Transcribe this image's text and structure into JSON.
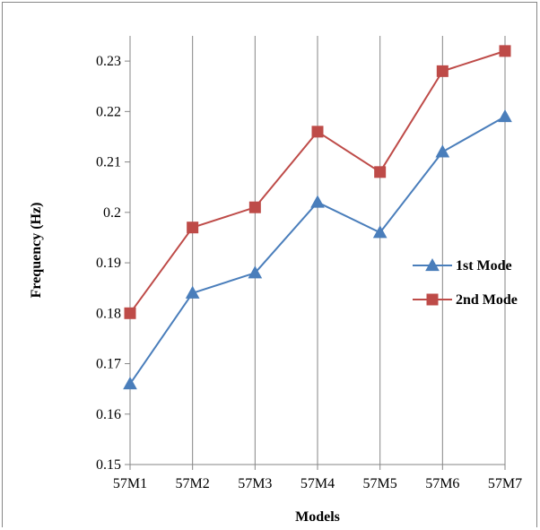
{
  "chart_data": {
    "type": "line",
    "title": "",
    "xlabel": "Models",
    "ylabel": "Frequency (Hz)",
    "categories": [
      "57M1",
      "57M2",
      "57M3",
      "57M4",
      "57M5",
      "57M6",
      "57M7"
    ],
    "ylim": [
      0.15,
      0.235
    ],
    "yticks": [
      "0.15",
      "0.16",
      "0.17",
      "0.18",
      "0.19",
      "0.2",
      "0.21",
      "0.22",
      "0.23"
    ],
    "grid": "vertical",
    "legend_position": "right",
    "series": [
      {
        "name": "1st Mode",
        "marker": "triangle",
        "color": "#4a7ebb",
        "values": [
          0.166,
          0.184,
          0.188,
          0.202,
          0.196,
          0.212,
          0.219
        ]
      },
      {
        "name": "2nd Mode",
        "marker": "square",
        "color": "#be4b48",
        "values": [
          0.18,
          0.197,
          0.201,
          0.216,
          0.208,
          0.228,
          0.232
        ]
      }
    ]
  }
}
